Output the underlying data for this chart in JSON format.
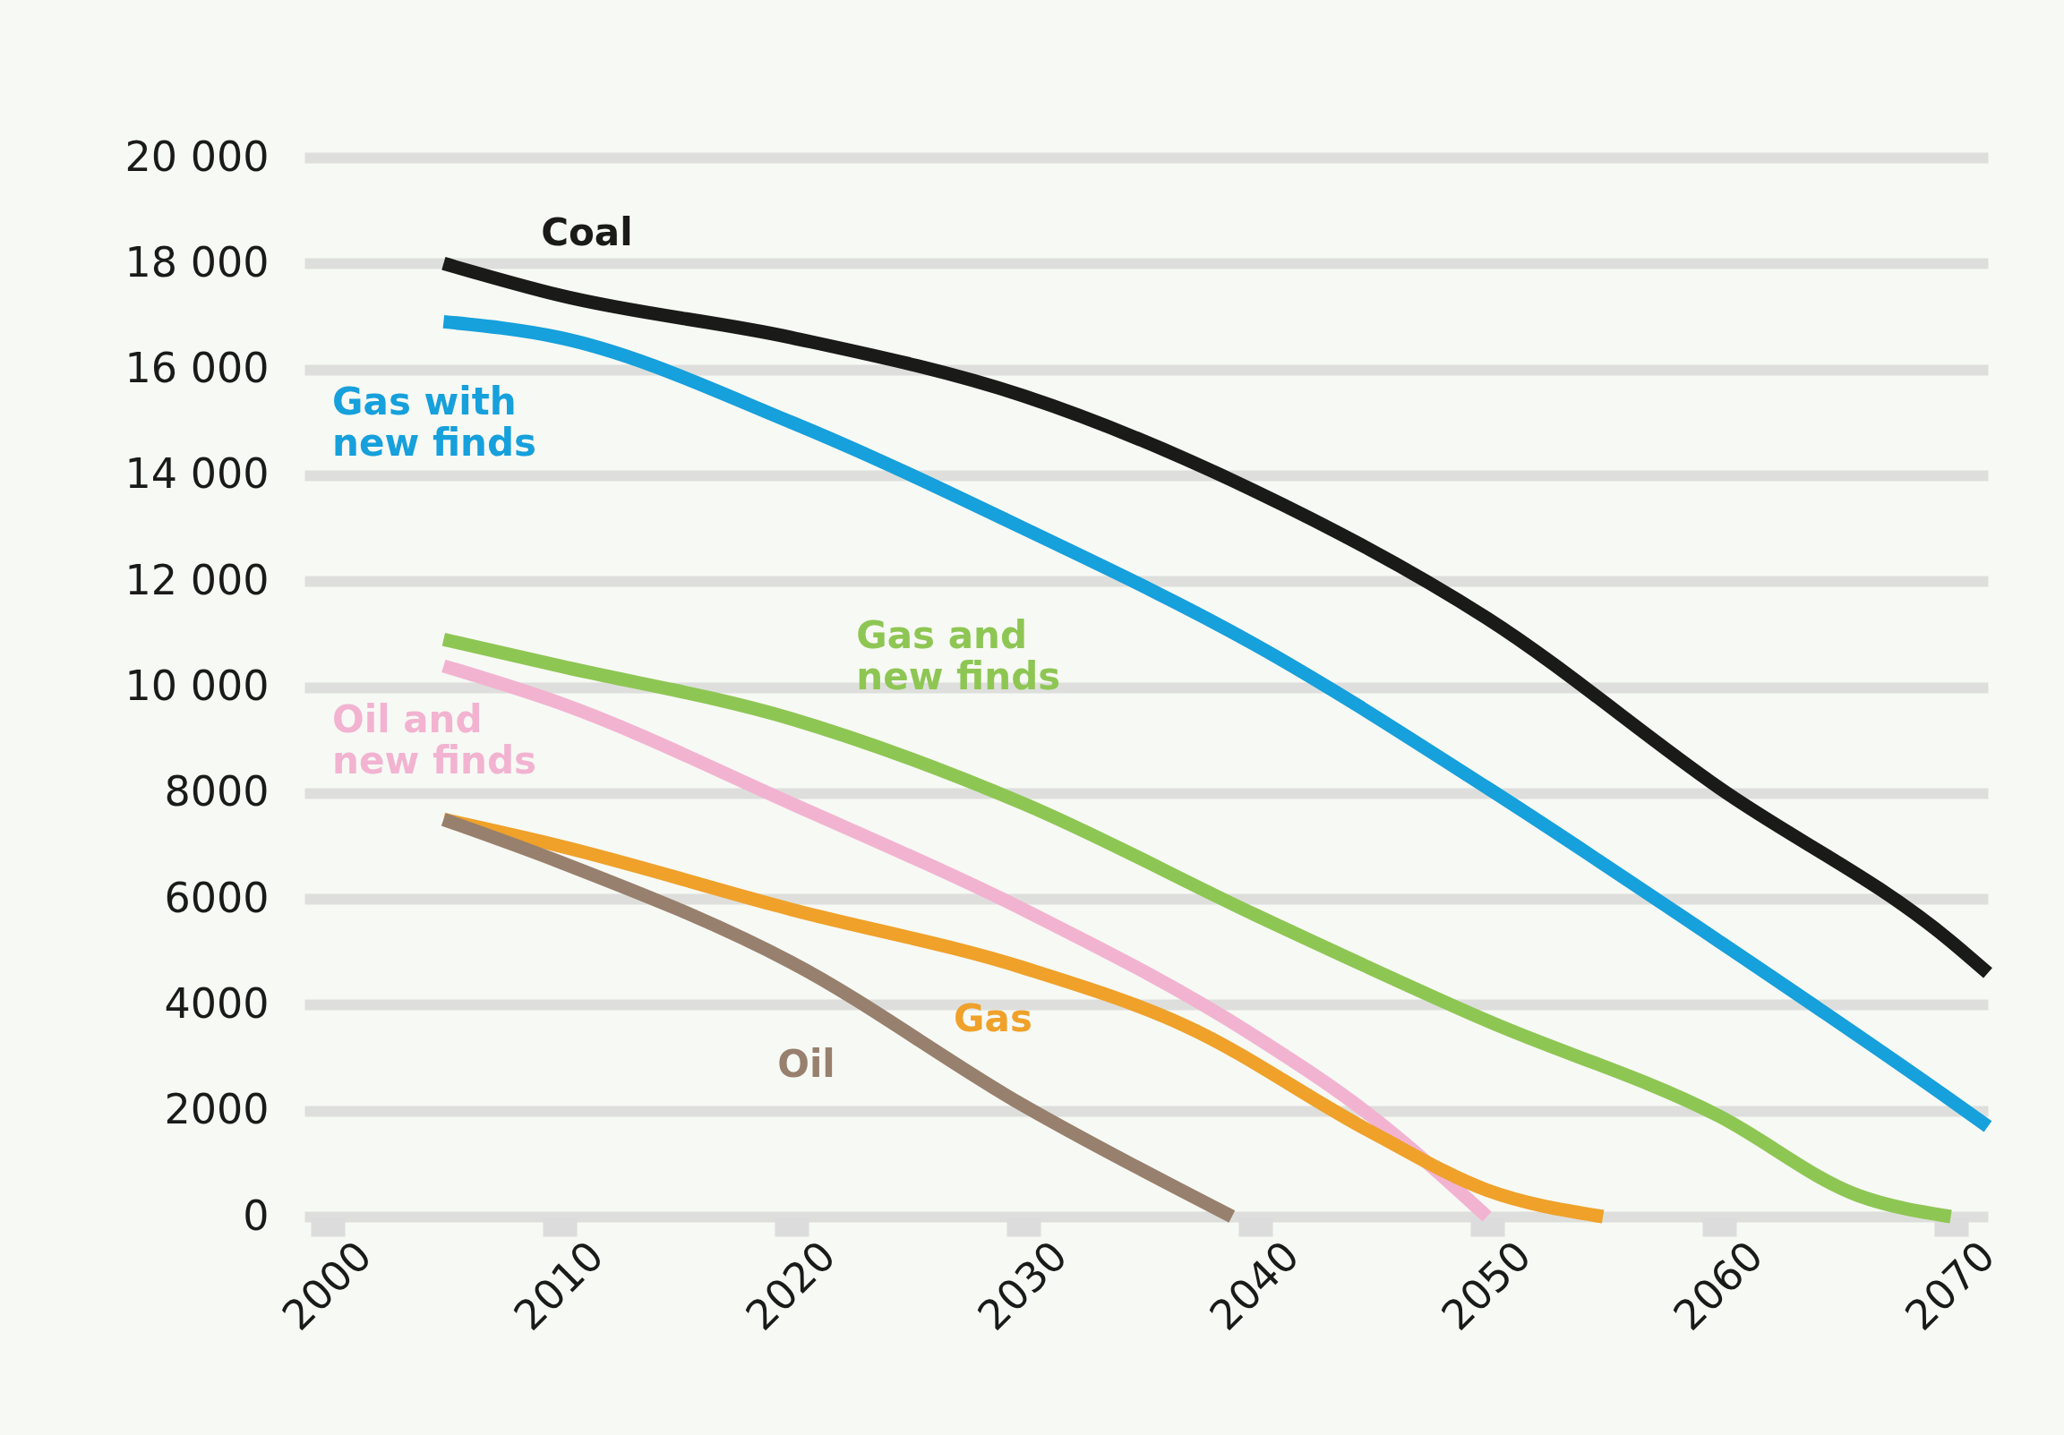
{
  "chart_data": {
    "type": "line",
    "xlim": [
      1999,
      2071.6
    ],
    "xticks": [
      2000,
      2010,
      2020,
      2030,
      2040,
      2050,
      2060,
      2070
    ],
    "ylim": [
      0,
      20000
    ],
    "yticks": [
      0,
      2000,
      4000,
      6000,
      8000,
      {
        "value": 10000,
        "label": "10 000"
      },
      {
        "value": 12000,
        "label": "12 000"
      },
      {
        "value": 14000,
        "label": "14 000"
      },
      {
        "value": 16000,
        "label": "16 000"
      },
      {
        "value": 18000,
        "label": "18 000"
      },
      {
        "value": 20000,
        "label": "20 000"
      }
    ],
    "grid": "y",
    "legend": false,
    "line_style": "solid",
    "marker": "none",
    "series": [
      {
        "name": "Coal",
        "color": "#1a1a18",
        "x": [
          2005,
          2010,
          2020,
          2030,
          2040,
          2050,
          2060,
          2070,
          2071.6
        ],
        "values": [
          18000,
          17400,
          16600,
          15500,
          13700,
          11300,
          8100,
          5200,
          4600
        ]
      },
      {
        "name": "Gas with new finds",
        "color": "#16a0dc",
        "x": [
          2005,
          2010,
          2020,
          2030,
          2040,
          2050,
          2060,
          2070,
          2071.6
        ],
        "values": [
          16900,
          16600,
          15000,
          13000,
          10800,
          8100,
          5200,
          2200,
          1700
        ]
      },
      {
        "name": "Gas and new finds",
        "color": "#8ec654",
        "x": [
          2005,
          2010,
          2020,
          2030,
          2040,
          2050,
          2060,
          2066,
          2070
        ],
        "values": [
          10900,
          10400,
          9400,
          7800,
          5700,
          3700,
          1900,
          400,
          0
        ]
      },
      {
        "name": "Oil and new finds",
        "color": "#f2b3d1",
        "x": [
          2005,
          2010,
          2020,
          2030,
          2040,
          2045,
          2050
        ],
        "values": [
          10400,
          9700,
          7800,
          5800,
          3400,
          1900,
          0
        ]
      },
      {
        "name": "Gas",
        "color": "#efa12a",
        "x": [
          2005,
          2010,
          2020,
          2030,
          2037,
          2045,
          2050,
          2055
        ],
        "values": [
          7500,
          7000,
          5800,
          4700,
          3600,
          1600,
          500,
          0
        ]
      },
      {
        "name": "Oil",
        "color": "#98806e",
        "x": [
          2005,
          2010,
          2020,
          2030,
          2039
        ],
        "values": [
          7500,
          6700,
          4800,
          2100,
          0
        ]
      }
    ]
  }
}
